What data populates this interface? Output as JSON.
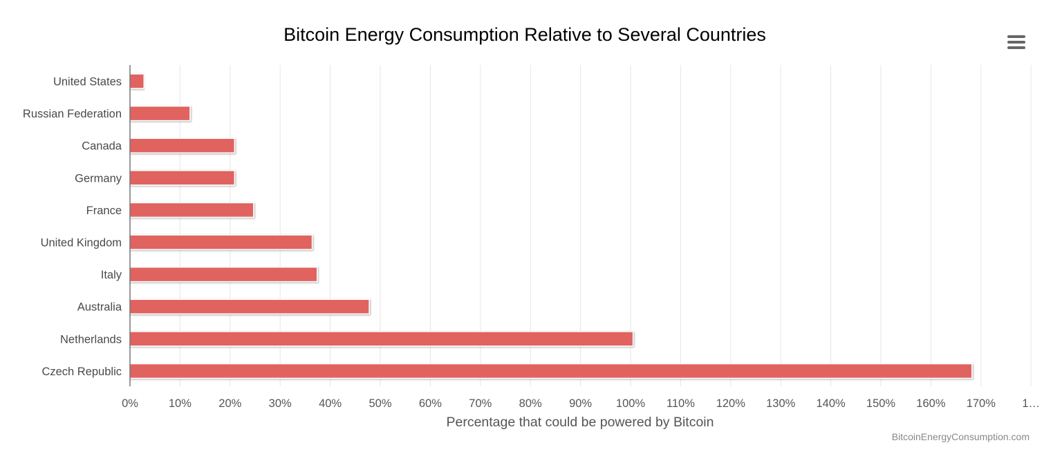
{
  "chart_data": {
    "type": "bar",
    "orientation": "horizontal",
    "title": "Bitcoin Energy Consumption Relative to Several Countries",
    "xlabel": "Percentage that could be powered by Bitcoin",
    "ylabel": "",
    "categories": [
      "United States",
      "Russian Federation",
      "Canada",
      "Germany",
      "France",
      "United Kingdom",
      "Italy",
      "Australia",
      "Netherlands",
      "Czech Republic"
    ],
    "values": [
      2.8,
      12.0,
      20.9,
      20.9,
      24.7,
      36.4,
      37.4,
      47.8,
      100.5,
      168.2
    ],
    "xlim": [
      0,
      180
    ],
    "x_ticks": [
      "0%",
      "10%",
      "20%",
      "30%",
      "40%",
      "50%",
      "60%",
      "70%",
      "80%",
      "90%",
      "100%",
      "110%",
      "120%",
      "130%",
      "140%",
      "150%",
      "160%",
      "170%",
      "1…"
    ],
    "grid": true,
    "bar_color": "#e0635e",
    "credit": "BitcoinEnergyConsumption.com"
  },
  "menu_icon": "hamburger-menu-icon"
}
